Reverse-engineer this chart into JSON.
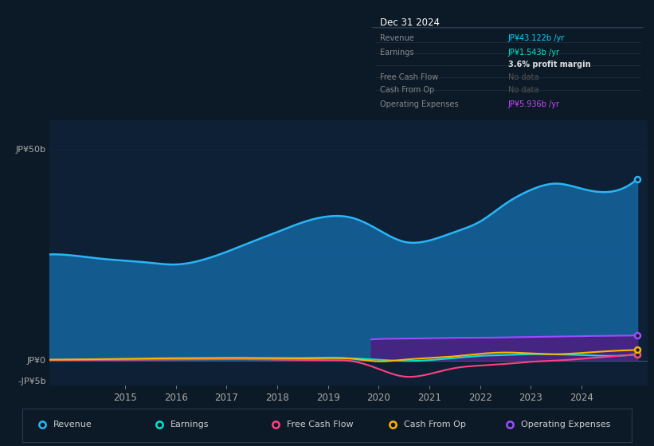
{
  "bg_color": "#0c1a27",
  "plot_bg_color": "#0d2035",
  "info_bg_color": "#060a10",
  "title": "Dec 31 2024",
  "ylim": [
    -6000000000.0,
    57000000000.0
  ],
  "xlim": [
    2013.5,
    2025.3
  ],
  "xticks": [
    2015,
    2016,
    2017,
    2018,
    2019,
    2020,
    2021,
    2022,
    2023,
    2024
  ],
  "revenue_x": [
    2013.5,
    2014.0,
    2014.5,
    2015.0,
    2015.5,
    2016.0,
    2016.5,
    2017.0,
    2017.5,
    2018.0,
    2018.5,
    2019.0,
    2019.5,
    2020.0,
    2020.5,
    2021.0,
    2021.5,
    2022.0,
    2022.5,
    2023.0,
    2023.5,
    2024.0,
    2024.5,
    2025.1
  ],
  "revenue_y": [
    25200000000.0,
    24900000000.0,
    24200000000.0,
    23700000000.0,
    23200000000.0,
    22800000000.0,
    23800000000.0,
    25800000000.0,
    28200000000.0,
    30500000000.0,
    32800000000.0,
    34200000000.0,
    33800000000.0,
    31000000000.0,
    28200000000.0,
    28500000000.0,
    30500000000.0,
    33000000000.0,
    37200000000.0,
    40500000000.0,
    42000000000.0,
    40800000000.0,
    40000000000.0,
    43100000000.0
  ],
  "earnings_x": [
    2013.5,
    2014.0,
    2014.5,
    2015.0,
    2015.5,
    2016.0,
    2016.5,
    2017.0,
    2017.5,
    2018.0,
    2018.5,
    2019.0,
    2019.5,
    2020.0,
    2020.5,
    2021.0,
    2021.5,
    2022.0,
    2022.5,
    2023.0,
    2023.5,
    2024.0,
    2024.5,
    2025.1
  ],
  "earnings_y": [
    150000000.0,
    180000000.0,
    220000000.0,
    250000000.0,
    300000000.0,
    350000000.0,
    400000000.0,
    450000000.0,
    500000000.0,
    550000000.0,
    600000000.0,
    650000000.0,
    500000000.0,
    200000000.0,
    -100000000.0,
    100000000.0,
    600000000.0,
    1100000000.0,
    1300000000.0,
    1500000000.0,
    1450000000.0,
    1300000000.0,
    1100000000.0,
    1540000000.0
  ],
  "fcf_x": [
    2013.5,
    2014.0,
    2014.5,
    2015.0,
    2015.5,
    2016.0,
    2016.5,
    2017.0,
    2017.5,
    2018.0,
    2018.5,
    2019.0,
    2019.5,
    2020.0,
    2020.5,
    2021.0,
    2021.5,
    2022.0,
    2022.5,
    2023.0,
    2023.5,
    2024.0,
    2024.5,
    2025.1
  ],
  "fcf_y": [
    100000000.0,
    120000000.0,
    150000000.0,
    200000000.0,
    220000000.0,
    250000000.0,
    300000000.0,
    350000000.0,
    300000000.0,
    200000000.0,
    150000000.0,
    100000000.0,
    -200000000.0,
    -2000000000.0,
    -3800000000.0,
    -3200000000.0,
    -1800000000.0,
    -1200000000.0,
    -800000000.0,
    -300000000.0,
    0,
    400000000.0,
    900000000.0,
    1400000000.0
  ],
  "cashop_x": [
    2013.5,
    2014.0,
    2014.5,
    2015.0,
    2015.5,
    2016.0,
    2016.5,
    2017.0,
    2017.5,
    2018.0,
    2018.5,
    2019.0,
    2019.5,
    2020.0,
    2020.5,
    2021.0,
    2021.5,
    2022.0,
    2022.5,
    2023.0,
    2023.5,
    2024.0,
    2024.5,
    2025.1
  ],
  "cashop_y": [
    200000000.0,
    250000000.0,
    320000000.0,
    400000000.0,
    500000000.0,
    550000000.0,
    600000000.0,
    650000000.0,
    600000000.0,
    550000000.0,
    500000000.0,
    600000000.0,
    400000000.0,
    -200000000.0,
    200000000.0,
    600000000.0,
    1000000000.0,
    1600000000.0,
    1900000000.0,
    1700000000.0,
    1500000000.0,
    1800000000.0,
    2200000000.0,
    2500000000.0
  ],
  "opex_x": [
    2019.85,
    2020.0,
    2020.5,
    2021.0,
    2021.5,
    2022.0,
    2022.5,
    2023.0,
    2023.5,
    2024.0,
    2024.5,
    2025.1
  ],
  "opex_y": [
    5000000000.0,
    5100000000.0,
    5200000000.0,
    5300000000.0,
    5400000000.0,
    5400000000.0,
    5500000000.0,
    5600000000.0,
    5700000000.0,
    5800000000.0,
    5850000000.0,
    5940000000.0
  ],
  "revenue_color": "#29b6f6",
  "earnings_color": "#00e5cc",
  "fcf_color": "#ff4081",
  "cashop_color": "#ffb300",
  "opex_color": "#9c4dff",
  "opex_fill_color": "#4a2080",
  "revenue_fill_color": "#1565a0",
  "grid_color": "#1a3050",
  "zero_line_color": "#aaaaaa",
  "label_color": "#aaaaaa",
  "text_color": "#cccccc",
  "legend_border_color": "#2a3a4a",
  "info_border_color": "#1e2d3d",
  "legend_items": [
    {
      "label": "Revenue",
      "color": "#29b6f6"
    },
    {
      "label": "Earnings",
      "color": "#00e5cc"
    },
    {
      "label": "Free Cash Flow",
      "color": "#ff4081"
    },
    {
      "label": "Cash From Op",
      "color": "#ffb300"
    },
    {
      "label": "Operating Expenses",
      "color": "#9c4dff"
    }
  ]
}
